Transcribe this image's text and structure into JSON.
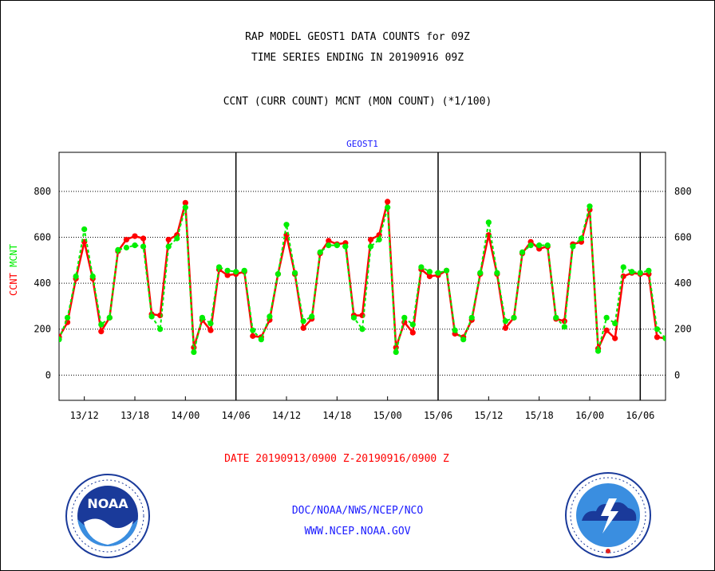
{
  "header": {
    "line1": "RAP MODEL GEOST1 DATA COUNTS for 09Z",
    "line2": "TIME SERIES ENDING IN 20190916 09Z",
    "line3": "CCNT (CURR COUNT) MCNT (MON COUNT) (*1/100)"
  },
  "chart_data": {
    "type": "line",
    "title": "GEOST1",
    "ylabel_parts": [
      "CCNT",
      "MCNT"
    ],
    "ylim": [
      -110,
      970
    ],
    "y_ticks": [
      0,
      200,
      400,
      600,
      800
    ],
    "x_range": [
      0,
      72
    ],
    "x_ticks": [
      {
        "x": 3,
        "label": "13/12"
      },
      {
        "x": 9,
        "label": "13/18"
      },
      {
        "x": 15,
        "label": "14/00"
      },
      {
        "x": 21,
        "label": "14/06"
      },
      {
        "x": 27,
        "label": "14/12"
      },
      {
        "x": 33,
        "label": "14/18"
      },
      {
        "x": 39,
        "label": "15/00"
      },
      {
        "x": 45,
        "label": "15/06"
      },
      {
        "x": 51,
        "label": "15/12"
      },
      {
        "x": 57,
        "label": "15/18"
      },
      {
        "x": 63,
        "label": "16/00"
      },
      {
        "x": 69,
        "label": "16/06"
      }
    ],
    "day_separators": [
      21,
      45,
      69
    ],
    "grid": "horizontal dotted",
    "series": [
      {
        "name": "CCNT",
        "color": "#ff0000",
        "values": [
          165,
          230,
          420,
          580,
          420,
          190,
          250,
          540,
          590,
          605,
          595,
          265,
          260,
          590,
          610,
          750,
          120,
          240,
          195,
          460,
          435,
          440,
          450,
          170,
          165,
          240,
          440,
          610,
          440,
          205,
          245,
          530,
          585,
          570,
          575,
          260,
          260,
          590,
          610,
          755,
          120,
          230,
          185,
          460,
          430,
          435,
          455,
          180,
          165,
          240,
          440,
          610,
          440,
          205,
          250,
          530,
          580,
          550,
          560,
          245,
          235,
          570,
          580,
          720,
          115,
          195,
          160,
          430,
          445,
          440,
          440,
          165,
          160
        ],
        "start_x": 0
      },
      {
        "name": "MCNT",
        "color": "#00ee00",
        "values": [
          155,
          250,
          430,
          635,
          430,
          220,
          250,
          545,
          555,
          565,
          560,
          255,
          200,
          560,
          595,
          730,
          100,
          250,
          225,
          470,
          455,
          450,
          455,
          195,
          155,
          255,
          440,
          655,
          445,
          235,
          255,
          535,
          565,
          565,
          560,
          250,
          200,
          560,
          590,
          730,
          100,
          250,
          220,
          470,
          450,
          445,
          455,
          195,
          155,
          250,
          445,
          665,
          445,
          235,
          250,
          535,
          565,
          565,
          565,
          250,
          210,
          560,
          595,
          735,
          105,
          250,
          225,
          470,
          450,
          445,
          455,
          200,
          160
        ],
        "start_x": 0
      }
    ],
    "xlabel": "DATE 20190913/0900 Z-20190916/0900 Z"
  },
  "footer": {
    "line1": "DOC/NOAA/NWS/NCEP/NCO",
    "line2": "WWW.NCEP.NOAA.GOV",
    "noaa_logo": "noaa-logo",
    "nws_logo": "nws-logo",
    "noaa_text": "NOAA"
  }
}
